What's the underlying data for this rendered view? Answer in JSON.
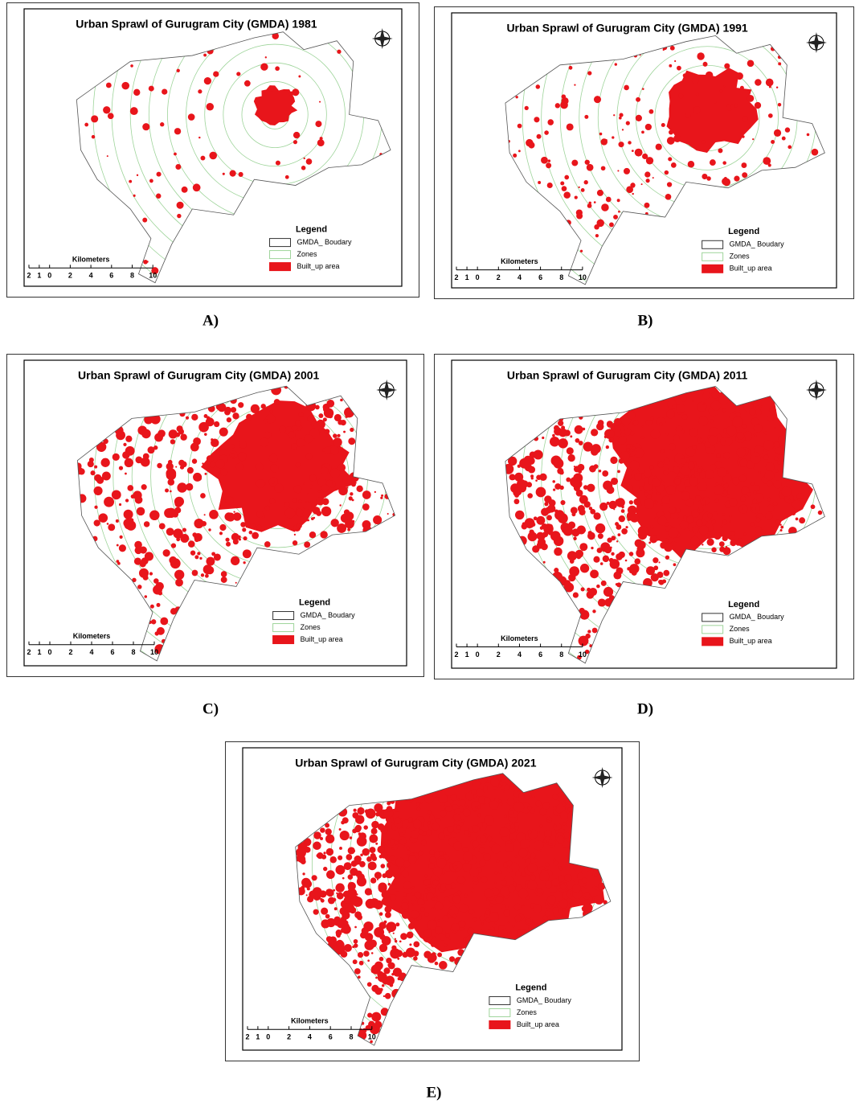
{
  "panels": [
    {
      "title": "Urban Sprawl of Gurugram City (GMDA) 1981",
      "label": "A)",
      "legend": {
        "title": "Legend",
        "items": [
          "GMDA_ Boudary",
          "Zones",
          "Built_up area"
        ]
      },
      "scale": {
        "title": "Kilometers",
        "ticks": [
          "2",
          "1",
          "0",
          "2",
          "4",
          "6",
          "8",
          "10"
        ]
      }
    },
    {
      "title": "Urban Sprawl of Gurugram City (GMDA) 1991",
      "label": "B)",
      "legend": {
        "title": "Legend",
        "items": [
          "GMDA_ Boudary",
          "Zones",
          "Built_up area"
        ]
      },
      "scale": {
        "title": "Kilometers",
        "ticks": [
          "2",
          "1",
          "0",
          "2",
          "4",
          "6",
          "8",
          "10"
        ]
      }
    },
    {
      "title": "Urban Sprawl of Gurugram City (GMDA) 2001",
      "label": "C)",
      "legend": {
        "title": "Legend",
        "items": [
          "GMDA_ Boudary",
          "Zones",
          "Built_up area"
        ]
      },
      "scale": {
        "title": "Kilometers",
        "ticks": [
          "2",
          "1",
          "0",
          "2",
          "4",
          "6",
          "8",
          "10"
        ]
      }
    },
    {
      "title": "Urban Sprawl of Gurugram City (GMDA) 2011",
      "label": "D)",
      "legend": {
        "title": "Legend",
        "items": [
          "GMDA_ Boudary",
          "Zones",
          "Built_up area"
        ]
      },
      "scale": {
        "title": "Kilometers",
        "ticks": [
          "2",
          "1",
          "0",
          "2",
          "4",
          "6",
          "8",
          "10"
        ]
      }
    },
    {
      "title": "Urban Sprawl of Gurugram City (GMDA) 2021",
      "label": "E)",
      "legend": {
        "title": "Legend",
        "items": [
          "GMDA_ Boudary",
          "Zones",
          "Built_up area"
        ]
      },
      "scale": {
        "title": "Kilometers",
        "ticks": [
          "2",
          "1",
          "0",
          "2",
          "4",
          "6",
          "8",
          "10"
        ]
      }
    }
  ]
}
